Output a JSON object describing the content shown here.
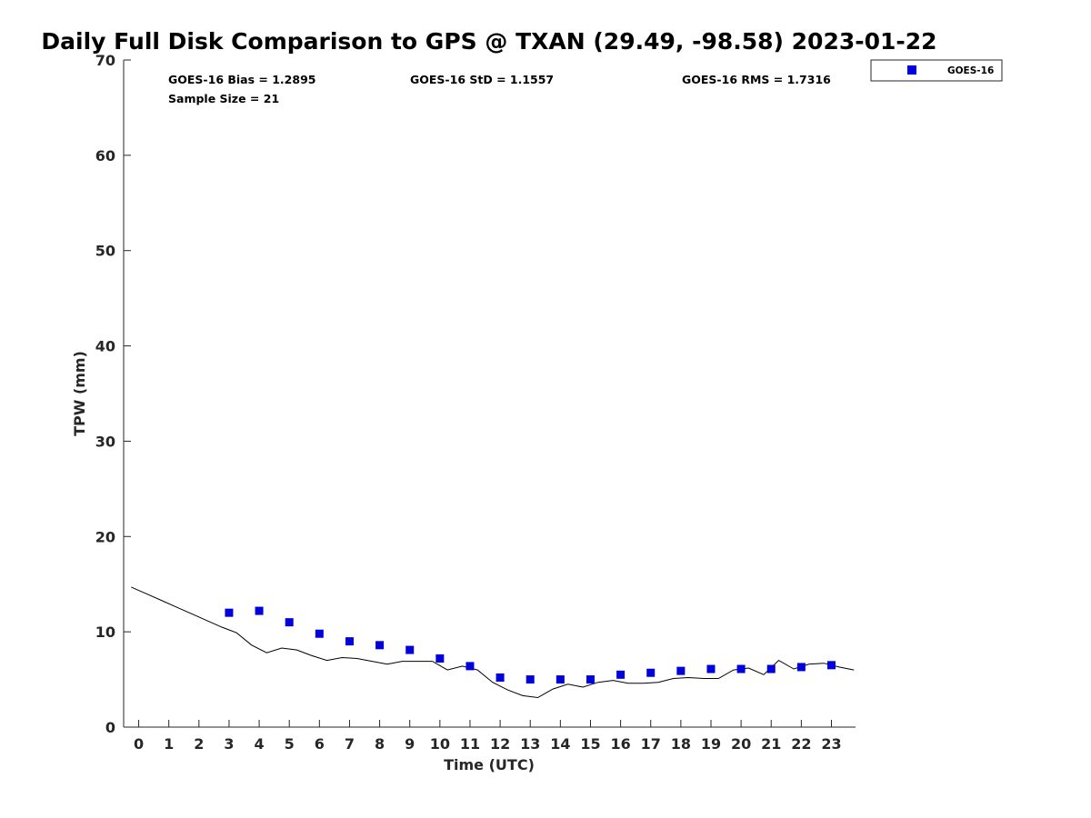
{
  "chart_data": {
    "type": "scatter",
    "title": "Daily Full Disk Comparison to GPS @ TXAN (29.49, -98.58) 2023-01-22",
    "xlabel": "Time (UTC)",
    "ylabel": "TPW (mm)",
    "xlim": [
      -0.5,
      23.8
    ],
    "ylim": [
      0,
      70
    ],
    "x_ticks": [
      0,
      1,
      2,
      3,
      4,
      5,
      6,
      7,
      8,
      9,
      10,
      11,
      12,
      13,
      14,
      15,
      16,
      17,
      18,
      19,
      20,
      21,
      22,
      23
    ],
    "x_tick_labels": [
      "0",
      "1",
      "2",
      "3",
      "4",
      "5",
      "6",
      "7",
      "8",
      "9",
      "10",
      "11",
      "12",
      "13",
      "14",
      "15",
      "16",
      "17",
      "18",
      "19",
      "20",
      "21",
      "22",
      "23"
    ],
    "y_ticks": [
      0,
      10,
      20,
      30,
      40,
      50,
      60,
      70
    ],
    "y_tick_labels": [
      "0",
      "10",
      "20",
      "30",
      "40",
      "50",
      "60",
      "70"
    ],
    "grid": false,
    "legend_position": "outside-top-right",
    "stats": {
      "bias": "GOES-16 Bias = 1.2895",
      "std": "GOES-16 StD = 1.1557",
      "rms": "GOES-16 RMS = 1.7316",
      "sample": "Sample Size = 21"
    },
    "series": [
      {
        "name": "GOES-16",
        "kind": "scatter",
        "color": "#0000dd",
        "marker": "square",
        "x": [
          3,
          4,
          5,
          6,
          7,
          8,
          9,
          10,
          11,
          12,
          13,
          14,
          15,
          16,
          17,
          18,
          19,
          20,
          21,
          22,
          23
        ],
        "y": [
          12.0,
          12.2,
          11.0,
          9.8,
          9.0,
          8.6,
          8.1,
          7.2,
          6.4,
          5.2,
          5.0,
          5.0,
          5.0,
          5.5,
          5.7,
          5.9,
          6.1,
          6.1,
          6.1,
          6.3,
          6.5
        ]
      },
      {
        "kind": "line",
        "color": "#000000",
        "x": [
          -0.25,
          0.25,
          0.75,
          1.25,
          1.75,
          2.25,
          2.75,
          3.25,
          3.75,
          4.25,
          4.75,
          5.25,
          5.75,
          6.25,
          6.75,
          7.25,
          7.75,
          8.25,
          8.75,
          9.25,
          9.75,
          10.25,
          10.75,
          11.25,
          11.75,
          12.25,
          12.75,
          13.25,
          13.75,
          14.25,
          14.75,
          15.25,
          15.75,
          16.25,
          16.75,
          17.25,
          17.75,
          18.25,
          18.75,
          19.25,
          19.75,
          20.25,
          20.75,
          21.25,
          21.75,
          22.25,
          22.75,
          23.25,
          23.75
        ],
        "y": [
          14.7,
          14.0,
          13.3,
          12.6,
          11.9,
          11.2,
          10.5,
          9.9,
          8.6,
          7.8,
          8.3,
          8.1,
          7.5,
          7.0,
          7.3,
          7.2,
          6.9,
          6.6,
          6.9,
          6.9,
          6.9,
          6.0,
          6.4,
          6.0,
          4.7,
          3.9,
          3.3,
          3.1,
          4.0,
          4.5,
          4.2,
          4.7,
          4.9,
          4.6,
          4.6,
          4.7,
          5.1,
          5.2,
          5.1,
          5.1,
          6.0,
          6.2,
          5.5,
          7.0,
          6.1,
          6.6,
          6.7,
          6.3,
          6.0
        ]
      }
    ]
  }
}
